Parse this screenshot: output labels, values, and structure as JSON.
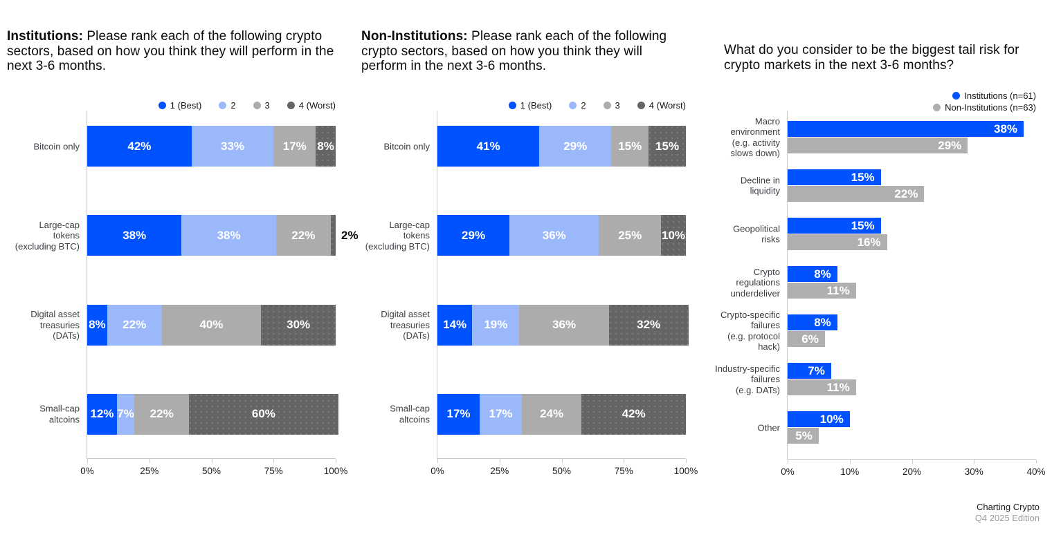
{
  "colors": {
    "rank1_best_blue": "#0052FF",
    "rank2_light_blue": "#9AB8FA",
    "rank3_gray": "#ACACAC",
    "rank4_worst_dark_gray": "#656568",
    "institutions_blue": "#0052FF",
    "non_institutions_gray": "#AFAFAF"
  },
  "footer": {
    "brand": "Charting Crypto",
    "edition": "Q4 2025 Edition"
  },
  "chart_data": [
    {
      "id": "institutions-ranking",
      "type": "stacked-bar-horizontal",
      "title_bold": "Institutions:",
      "title_rest": " Please rank each of the following crypto sectors, based on how you think they will perform in the next 3-6 months.",
      "legend": [
        "1 (Best)",
        "2",
        "3",
        "4 (Worst)"
      ],
      "legend_position": "top-right",
      "categories": [
        "Bitcoin only",
        "Large-cap tokens (excluding BTC)",
        "Digital asset treasuries (DATs)",
        "Small-cap altcoins"
      ],
      "category_label_lines": [
        [
          "Bitcoin only"
        ],
        [
          "Large-cap",
          "tokens",
          "(excluding BTC)"
        ],
        [
          "Digital asset",
          "treasuries",
          "(DATs)"
        ],
        [
          "Small-cap",
          "altcoins"
        ]
      ],
      "series": [
        {
          "name": "1 (Best)",
          "values": [
            42,
            38,
            8,
            12
          ]
        },
        {
          "name": "2",
          "values": [
            33,
            38,
            22,
            7
          ]
        },
        {
          "name": "3",
          "values": [
            17,
            22,
            40,
            22
          ]
        },
        {
          "name": "4 (Worst)",
          "values": [
            8,
            2,
            30,
            60
          ]
        }
      ],
      "value_suffix": "%",
      "xlim": [
        0,
        100
      ],
      "x_ticks": [
        "0%",
        "25%",
        "50%",
        "75%",
        "100%"
      ],
      "grid": false
    },
    {
      "id": "non-institutions-ranking",
      "type": "stacked-bar-horizontal",
      "title_bold": "Non-Institutions:",
      "title_rest": " Please rank each of the following crypto sectors, based on how you think they will perform in the next 3-6 months.",
      "legend": [
        "1 (Best)",
        "2",
        "3",
        "4 (Worst)"
      ],
      "legend_position": "top-right",
      "categories": [
        "Bitcoin only",
        "Large-cap tokens (excluding BTC)",
        "Digital asset treasuries (DATs)",
        "Small-cap altcoins"
      ],
      "category_label_lines": [
        [
          "Bitcoin only"
        ],
        [
          "Large-cap",
          "tokens",
          "(excluding BTC)"
        ],
        [
          "Digital asset",
          "treasuries",
          "(DATs)"
        ],
        [
          "Small-cap",
          "altcoins"
        ]
      ],
      "series": [
        {
          "name": "1 (Best)",
          "values": [
            41,
            29,
            14,
            17
          ]
        },
        {
          "name": "2",
          "values": [
            29,
            36,
            19,
            17
          ]
        },
        {
          "name": "3",
          "values": [
            15,
            25,
            36,
            24
          ]
        },
        {
          "name": "4 (Worst)",
          "values": [
            15,
            10,
            32,
            42
          ]
        }
      ],
      "value_suffix": "%",
      "xlim": [
        0,
        100
      ],
      "x_ticks": [
        "0%",
        "25%",
        "50%",
        "75%",
        "100%"
      ],
      "grid": false
    },
    {
      "id": "tail-risk",
      "type": "grouped-bar-horizontal",
      "title": "What do you consider to be the biggest tail risk for crypto markets in the next 3-6 months?",
      "legend": [
        "Institutions (n=61)",
        "Non-Institutions (n=63)"
      ],
      "legend_position": "top-right",
      "categories": [
        "Macro environment (e.g. activity slows down)",
        "Decline in liquidity",
        "Geopolitical risks",
        "Crypto regulations underdeliver",
        "Crypto-specific failures (e.g. protocol hack)",
        "Industry-specific failures (e.g. DATs)",
        "Other"
      ],
      "category_label_lines": [
        [
          "Macro",
          "environment",
          "(e.g. activity",
          "slows down)"
        ],
        [
          "Decline in",
          "liquidity"
        ],
        [
          "Geopolitical",
          "risks"
        ],
        [
          "Crypto",
          "regulations",
          "underdeliver"
        ],
        [
          "Crypto-specific",
          "failures",
          "(e.g. protocol",
          "hack)"
        ],
        [
          "Industry-specific",
          "failures",
          "(e.g. DATs)"
        ],
        [
          "Other"
        ]
      ],
      "series": [
        {
          "name": "Institutions (n=61)",
          "values": [
            38,
            15,
            15,
            8,
            8,
            7,
            10
          ]
        },
        {
          "name": "Non-Institutions (n=63)",
          "values": [
            29,
            22,
            16,
            11,
            6,
            11,
            5
          ]
        }
      ],
      "value_suffix": "%",
      "xlim": [
        0,
        40
      ],
      "x_ticks": [
        "0%",
        "10%",
        "20%",
        "30%",
        "40%"
      ],
      "grid": false
    }
  ]
}
